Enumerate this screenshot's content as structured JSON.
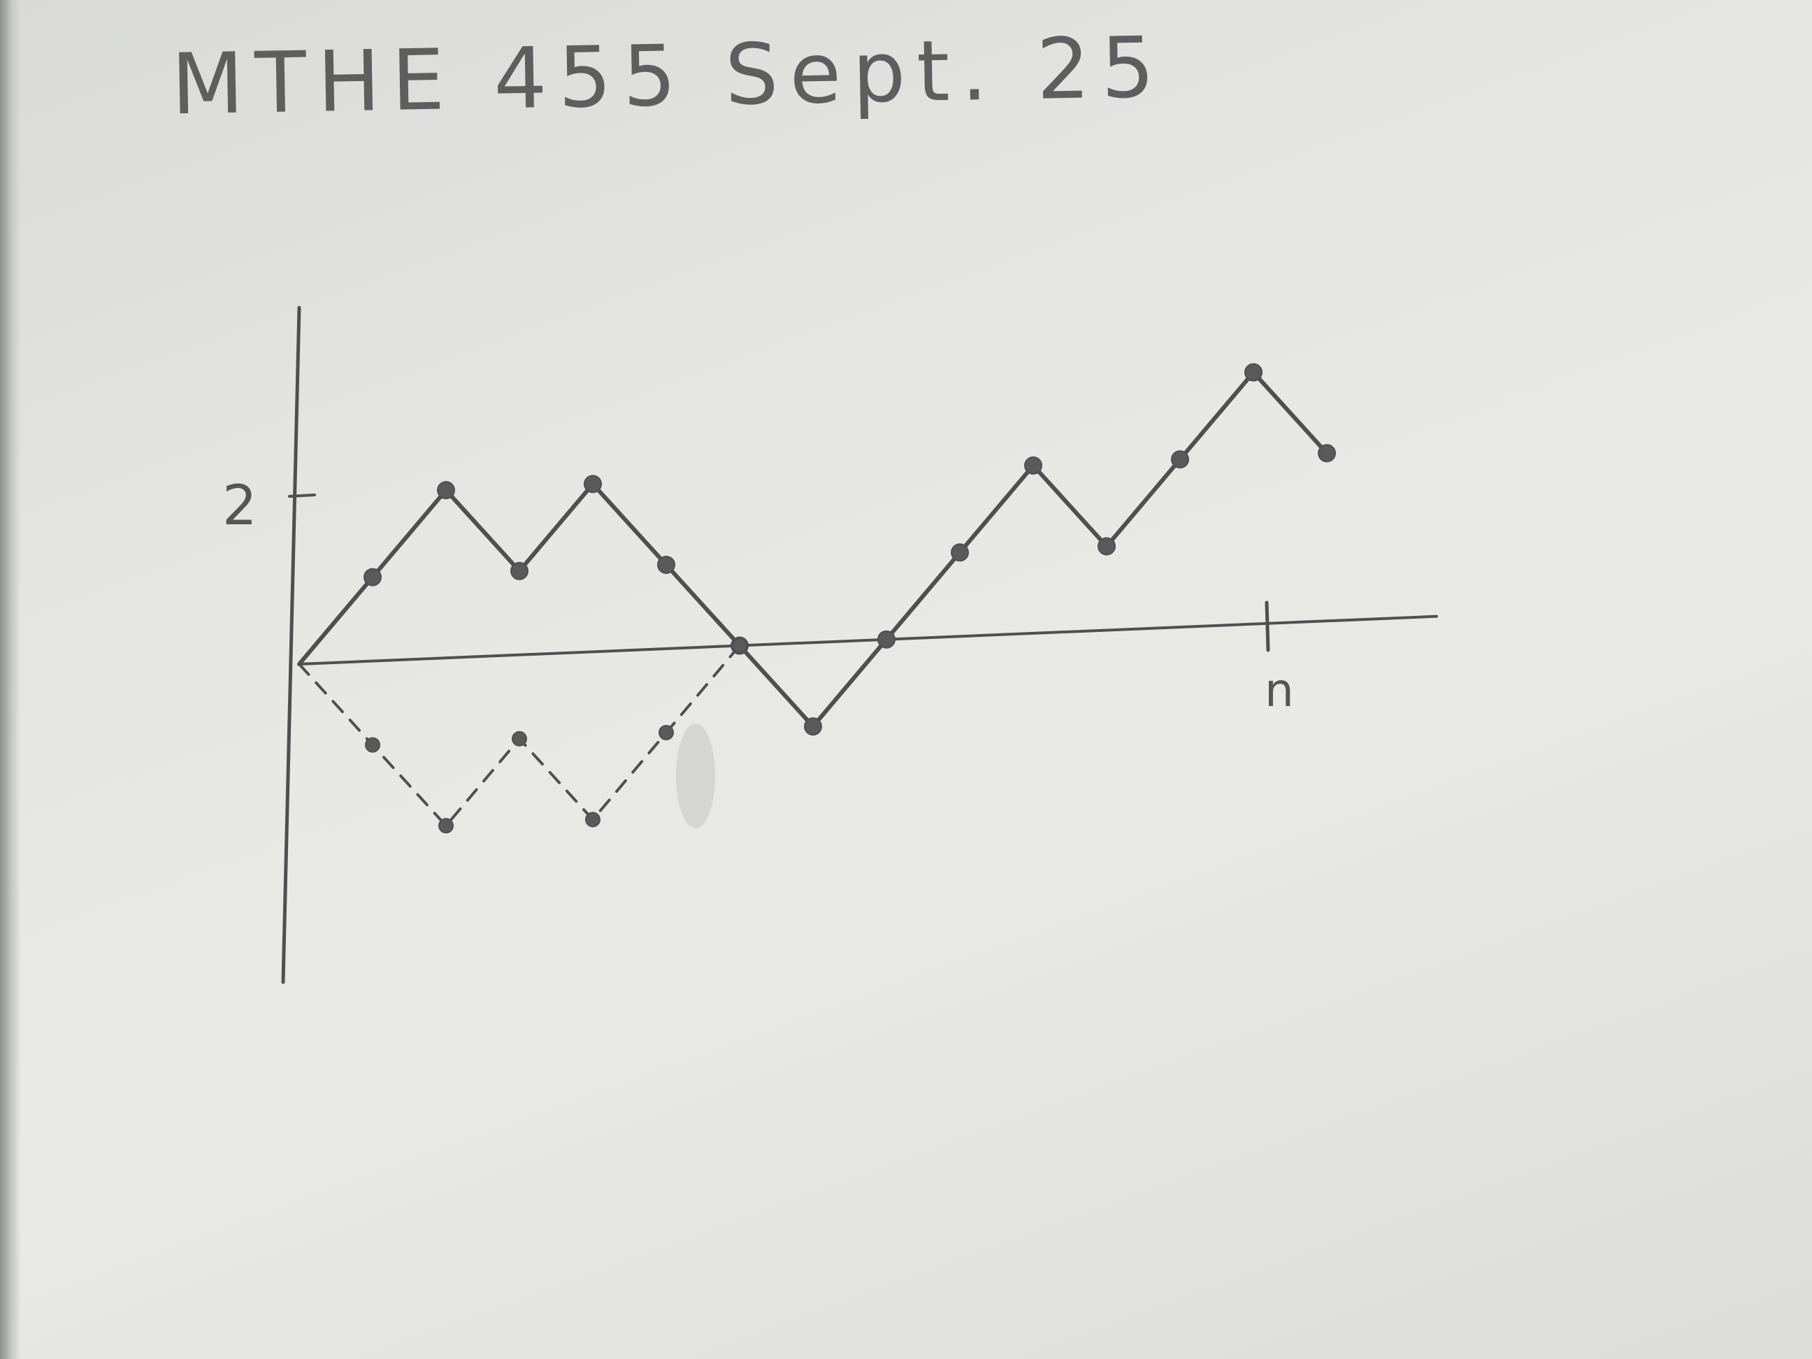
{
  "note": {
    "title": "MTHE 455 Sept. 25"
  },
  "chart_data": {
    "type": "line",
    "title": "",
    "xlabel": "n",
    "ylabel": "",
    "ytick_labels": [
      "2"
    ],
    "ytick_values": [
      2
    ],
    "xlim": [
      0,
      13
    ],
    "ylim": [
      -4,
      4
    ],
    "grid": false,
    "series": [
      {
        "style": "solid",
        "x": [
          0,
          1,
          2,
          3,
          4,
          5,
          6,
          7,
          8,
          9,
          10,
          11,
          12,
          13
        ],
        "values": [
          0,
          1,
          2,
          1,
          2,
          1,
          0,
          -1,
          0,
          1,
          2,
          1,
          2,
          3
        ]
      },
      {
        "style": "dashed",
        "x": [
          0,
          1,
          2,
          3,
          4,
          5,
          6
        ],
        "values": [
          0,
          -1,
          -2,
          -1,
          -2,
          -1,
          0
        ]
      },
      {
        "style": "solid",
        "x": [
          13,
          14
        ],
        "values": [
          3,
          2
        ]
      }
    ],
    "colors": {
      "pencil": "#4f4f4f",
      "paper": "#e6e6e3"
    }
  }
}
